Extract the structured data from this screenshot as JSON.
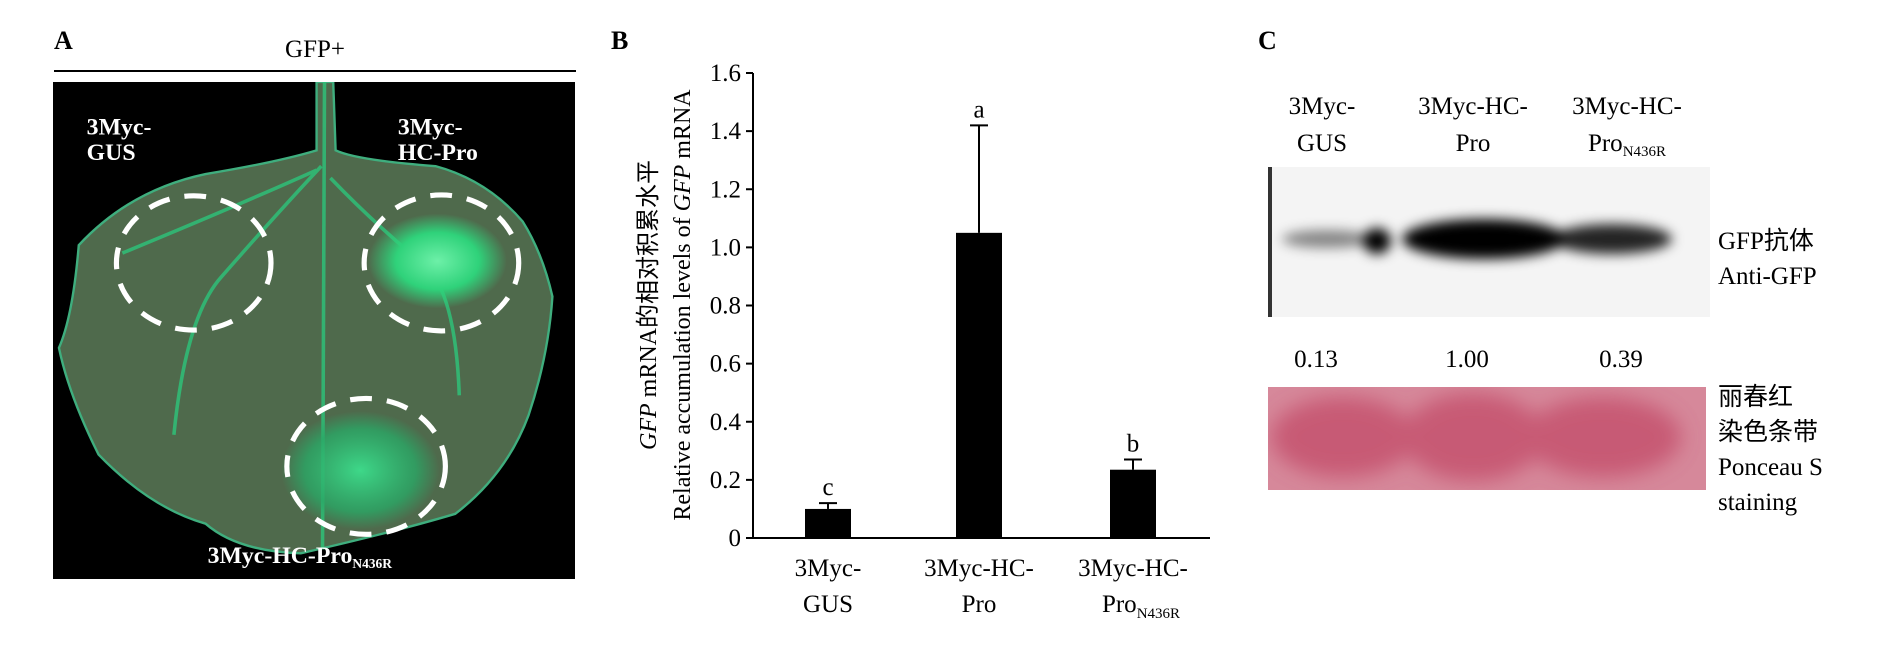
{
  "panel_a": {
    "label": "A",
    "header": "GFP+",
    "labels": {
      "gus_line1": "3Myc-",
      "gus_line2": "GUS",
      "hc_line1": "3Myc-",
      "hc_line2": "HC-Pro",
      "n436r_main": "3Myc-HC-Pro",
      "n436r_sub": "N436R"
    },
    "colors": {
      "background": "#000000",
      "leaf": "#4f6a4c",
      "gfp": "#2fd27a"
    }
  },
  "panel_b": {
    "label": "B"
  },
  "chart_data": {
    "type": "bar",
    "categories": [
      "3Myc-GUS",
      "3Myc-HC-Pro",
      "3Myc-HC-ProN436R"
    ],
    "category_labels": [
      {
        "line1": "3Myc-",
        "line2": "GUS",
        "sub": ""
      },
      {
        "line1": "3Myc-HC-",
        "line2": "Pro",
        "sub": ""
      },
      {
        "line1": "3Myc-HC-",
        "line2": "Pro",
        "sub": "N436R"
      }
    ],
    "values": [
      0.1,
      1.05,
      0.235
    ],
    "error_upper": [
      0.12,
      1.42,
      0.27
    ],
    "significance": [
      "c",
      "a",
      "b"
    ],
    "ylabel_cn": {
      "italic": "GFP",
      "rest": " mRNA的相对积累水平"
    },
    "ylabel_en": {
      "pre": "Relative accumulation levels of ",
      "italic": "GFP",
      "post": " mRNA"
    },
    "xlabel": "",
    "ylim": [
      0,
      1.6
    ],
    "yticks": [
      "0",
      "0.2",
      "0.4",
      "0.6",
      "0.8",
      "1.0",
      "1.2",
      "1.4",
      "1.6"
    ],
    "ytick_values": [
      0,
      0.2,
      0.4,
      0.6,
      0.8,
      1.0,
      1.2,
      1.4,
      1.6
    ],
    "grid": false,
    "bar_color": "#000000"
  },
  "panel_c": {
    "label": "C",
    "lanes": [
      {
        "line1": "3Myc-",
        "line2": "GUS",
        "sub": ""
      },
      {
        "line1": "3Myc-HC-",
        "line2": "Pro",
        "sub": ""
      },
      {
        "line1": "3Myc-HC-",
        "line2": "Pro",
        "sub": "N436R"
      }
    ],
    "blot_label_cn": "GFP抗体",
    "blot_label_en": "Anti-GFP",
    "quantification": [
      "0.13",
      "1.00",
      "0.39"
    ],
    "ponceau_label_cn1": "丽春红",
    "ponceau_label_cn2": "染色条带",
    "ponceau_label_en1": "Ponceau S",
    "ponceau_label_en2": "staining",
    "colors": {
      "ponceau": "#d27c8f",
      "ponceau_band": "#c4506c"
    }
  }
}
